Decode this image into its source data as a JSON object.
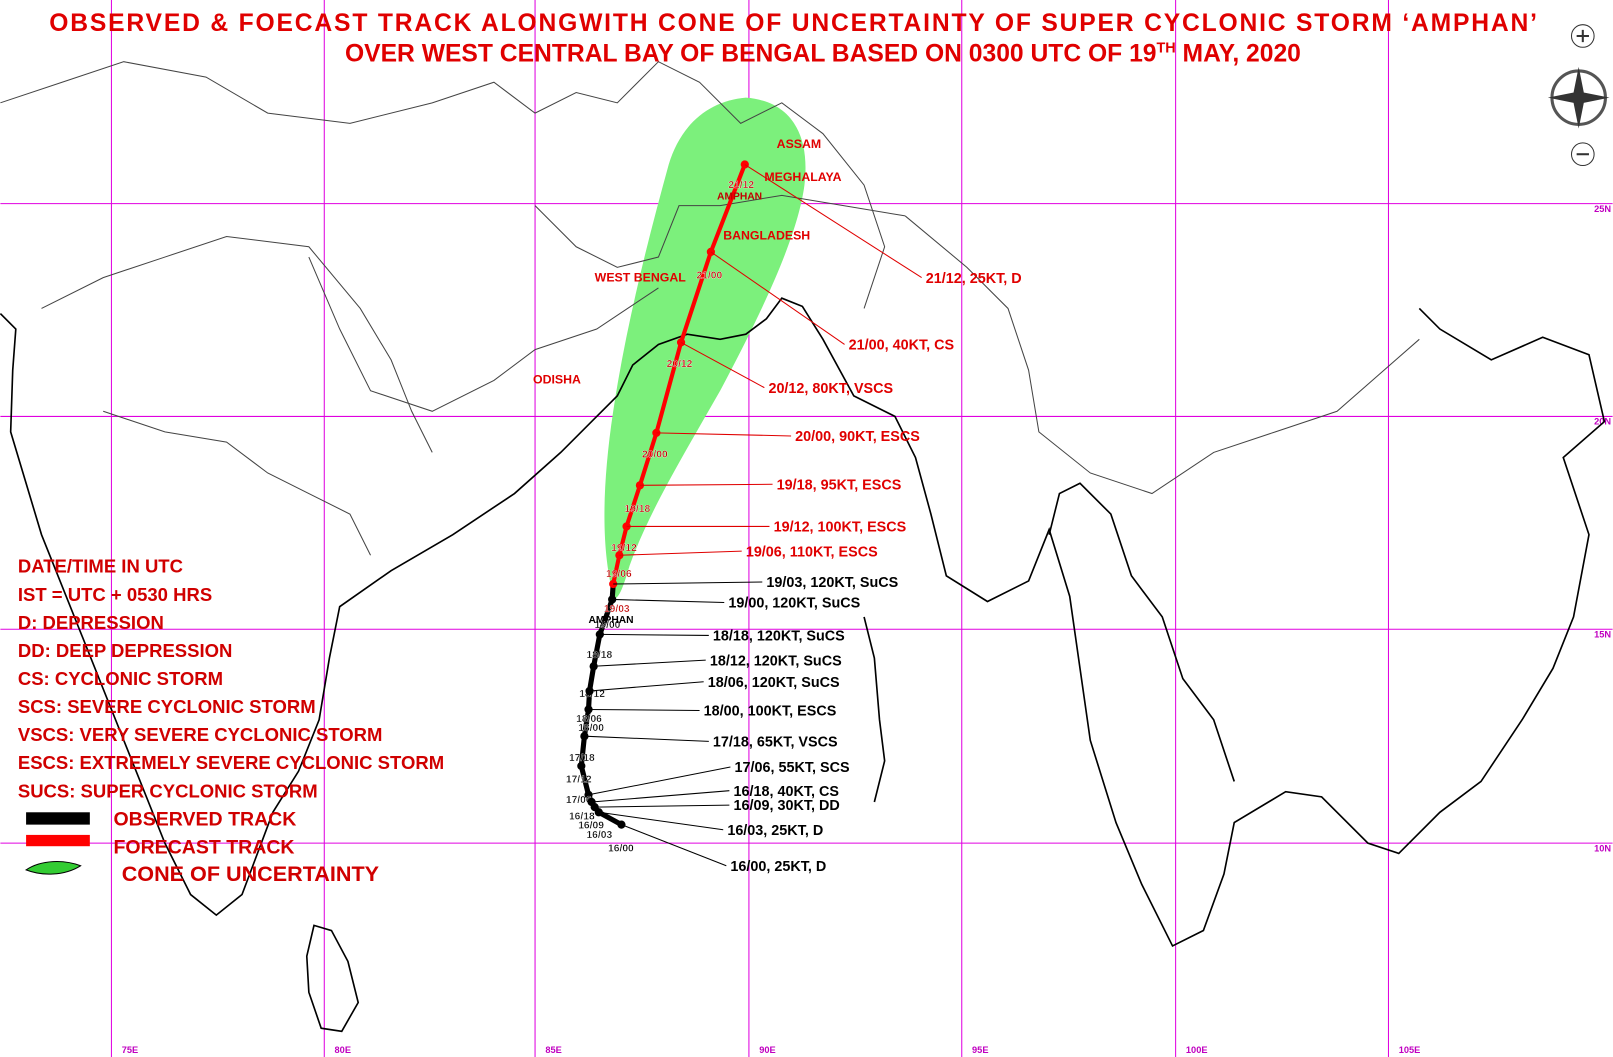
{
  "header": {
    "title_line1": "OBSERVED & FOECAST TRACK ALONGWITH CONE OF UNCERTAINTY OF SUPER CYCLONIC STORM ‘AMPHAN’",
    "title_line2_before": "OVER WEST CENTRAL  BAY OF BENGAL BASED ON 0300 UTC OF 19",
    "title_line2_sup": "TH",
    "title_line2_after": " MAY, 2020"
  },
  "regions": [
    "ASSAM",
    "MEGHALAYA",
    "BANGLADESH",
    "WEST BENGAL",
    "ODISHA"
  ],
  "storm_labels": [
    "AMPHAN",
    "AMPHAN"
  ],
  "forecast_points": [
    {
      "time": "21/12",
      "callout": "21/12, 25KT, D"
    },
    {
      "time": "21/00",
      "callout": "21/00, 40KT, CS"
    },
    {
      "time": "20/12",
      "callout": "20/12, 80KT, VSCS"
    },
    {
      "time": "20/00",
      "callout": "20/00, 90KT, ESCS"
    },
    {
      "time": "19/18",
      "callout": "19/18, 95KT, ESCS"
    },
    {
      "time": "19/12",
      "callout": "19/12, 100KT, ESCS"
    },
    {
      "time": "19/06",
      "callout": "19/06, 110KT, ESCS"
    },
    {
      "time": "19/03",
      "callout": "19/03, 120KT, SuCS"
    }
  ],
  "observed_points": [
    {
      "time": "19/00",
      "callout": "19/00, 120KT, SuCS"
    },
    {
      "time": "18/18",
      "callout": "18/18, 120KT, SuCS"
    },
    {
      "time": "18/12",
      "callout": "18/12, 120KT, SuCS"
    },
    {
      "time": "18/06",
      "callout": "18/06, 120KT, SuCS"
    },
    {
      "time": "18/00",
      "callout": "18/00, 100KT, ESCS"
    },
    {
      "time": "17/18",
      "callout": "17/18, 65KT, VSCS"
    },
    {
      "time": "17/12",
      "callout": null
    },
    {
      "time": "17/06",
      "callout": "17/06, 55KT, SCS"
    },
    {
      "time": "16/18",
      "callout": "16/18, 40KT, CS"
    },
    {
      "time": "16/09",
      "callout": "16/09, 30KT, DD"
    },
    {
      "time": "16/03",
      "callout": "16/03, 25KT, D"
    },
    {
      "time": "16/00",
      "callout": "16/00, 25KT, D"
    }
  ],
  "legend": {
    "notes": [
      "DATE/TIME IN UTC",
      "IST = UTC + 0530 HRS",
      "D: DEPRESSION",
      "DD: DEEP DEPRESSION",
      "CS: CYCLONIC STORM",
      "SCS: SEVERE CYCLONIC STORM",
      "VSCS: VERY SEVERE CYCLONIC STORM",
      "ESCS: EXTREMELY SEVERE CYCLONIC STORM",
      "SUCS: SUPER CYCLONIC STORM"
    ],
    "observed": "OBSERVED TRACK",
    "forecast": "FORECAST TRACK",
    "cone": "CONE OF UNCERTAINTY"
  },
  "grid_labels": {
    "lon": [
      "75E",
      "80E",
      "85E",
      "90E",
      "95E",
      "100E",
      "105E"
    ],
    "lat": [
      "25N",
      "20N",
      "15N",
      "10N"
    ]
  }
}
